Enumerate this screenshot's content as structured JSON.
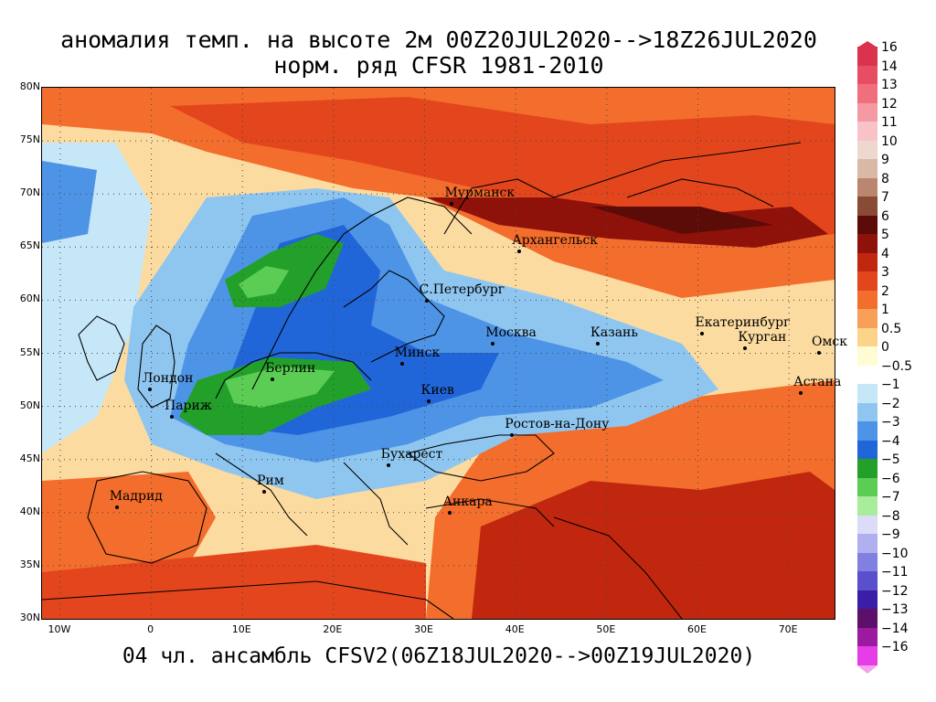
{
  "title": {
    "line1": "аномалия темп. на высоте 2м 00Z20JUL2020-->18Z26JUL2020",
    "line2": "норм. ряд CFSR 1981-2010"
  },
  "footer": "04 чл. ансамбль CFSV2(06Z18JUL2020-->00Z19JUL2020)",
  "lat_labels": [
    "80N",
    "75N",
    "70N",
    "65N",
    "60N",
    "55N",
    "50N",
    "45N",
    "40N",
    "35N",
    "30N"
  ],
  "lon_labels": [
    "10W",
    "0",
    "10E",
    "20E",
    "30E",
    "40E",
    "50E",
    "60E",
    "70E"
  ],
  "cities": [
    {
      "name": "Мурманск",
      "lon": 33.1,
      "lat": 69.0
    },
    {
      "name": "Архангельск",
      "lon": 40.5,
      "lat": 64.5
    },
    {
      "name": "С.Петербург",
      "lon": 30.3,
      "lat": 59.9
    },
    {
      "name": "Москва",
      "lon": 37.6,
      "lat": 55.8
    },
    {
      "name": "Казань",
      "lon": 49.1,
      "lat": 55.8
    },
    {
      "name": "Екатеринбург",
      "lon": 60.6,
      "lat": 56.8
    },
    {
      "name": "Курган",
      "lon": 65.3,
      "lat": 55.4
    },
    {
      "name": "Омск",
      "lon": 73.4,
      "lat": 55.0
    },
    {
      "name": "Астана",
      "lon": 71.4,
      "lat": 51.2
    },
    {
      "name": "Минск",
      "lon": 27.6,
      "lat": 53.9
    },
    {
      "name": "Киев",
      "lon": 30.5,
      "lat": 50.4
    },
    {
      "name": "Ростов-на-Дону",
      "lon": 39.7,
      "lat": 47.2
    },
    {
      "name": "Берлин",
      "lon": 13.4,
      "lat": 52.5
    },
    {
      "name": "Лондон",
      "lon": -0.1,
      "lat": 51.5
    },
    {
      "name": "Париж",
      "lon": 2.35,
      "lat": 48.9
    },
    {
      "name": "Бухарест",
      "lon": 26.1,
      "lat": 44.4
    },
    {
      "name": "Рим",
      "lon": 12.5,
      "lat": 41.9
    },
    {
      "name": "Мадрид",
      "lon": -3.7,
      "lat": 40.4
    },
    {
      "name": "Анкара",
      "lon": 32.9,
      "lat": 39.9
    }
  ],
  "legend": {
    "items": [
      {
        "label": "16",
        "color": "#d9334d"
      },
      {
        "label": "14",
        "color": "#e84e63"
      },
      {
        "label": "13",
        "color": "#f06f7c"
      },
      {
        "label": "12",
        "color": "#f59aa2"
      },
      {
        "label": "11",
        "color": "#f8c3c7"
      },
      {
        "label": "10",
        "color": "#eed7cf"
      },
      {
        "label": "9",
        "color": "#d9b8a6"
      },
      {
        "label": "8",
        "color": "#bb8670"
      },
      {
        "label": "7",
        "color": "#8a4b35"
      },
      {
        "label": "6",
        "color": "#5b0b08"
      },
      {
        "label": "5",
        "color": "#8e120a"
      },
      {
        "label": "4",
        "color": "#c1270f"
      },
      {
        "label": "3",
        "color": "#e3461c"
      },
      {
        "label": "2",
        "color": "#f36d2d"
      },
      {
        "label": "1",
        "color": "#f8a05a"
      },
      {
        "label": "0.5",
        "color": "#fbd48a"
      },
      {
        "label": "0",
        "color": "#fffbd2"
      },
      {
        "label": "−0.5",
        "color": "#ffffff"
      },
      {
        "label": "−1",
        "color": "#c6e7f8"
      },
      {
        "label": "−2",
        "color": "#8fc6f0"
      },
      {
        "label": "−3",
        "color": "#4e94e6"
      },
      {
        "label": "−4",
        "color": "#2166d8"
      },
      {
        "label": "−5",
        "color": "#22a02a"
      },
      {
        "label": "−6",
        "color": "#5bcc54"
      },
      {
        "label": "−7",
        "color": "#a9ec9b"
      },
      {
        "label": "−8",
        "color": "#dcdcf8"
      },
      {
        "label": "−9",
        "color": "#b0b0f0"
      },
      {
        "label": "−10",
        "color": "#8080e0"
      },
      {
        "label": "−11",
        "color": "#5a4fcc"
      },
      {
        "label": "−12",
        "color": "#3a1ea8"
      },
      {
        "label": "−13",
        "color": "#5c1069"
      },
      {
        "label": "−14",
        "color": "#9c1a9e"
      },
      {
        "label": "−16",
        "color": "#e63ee6"
      }
    ],
    "bottom_color": "#f6a0f0"
  }
}
